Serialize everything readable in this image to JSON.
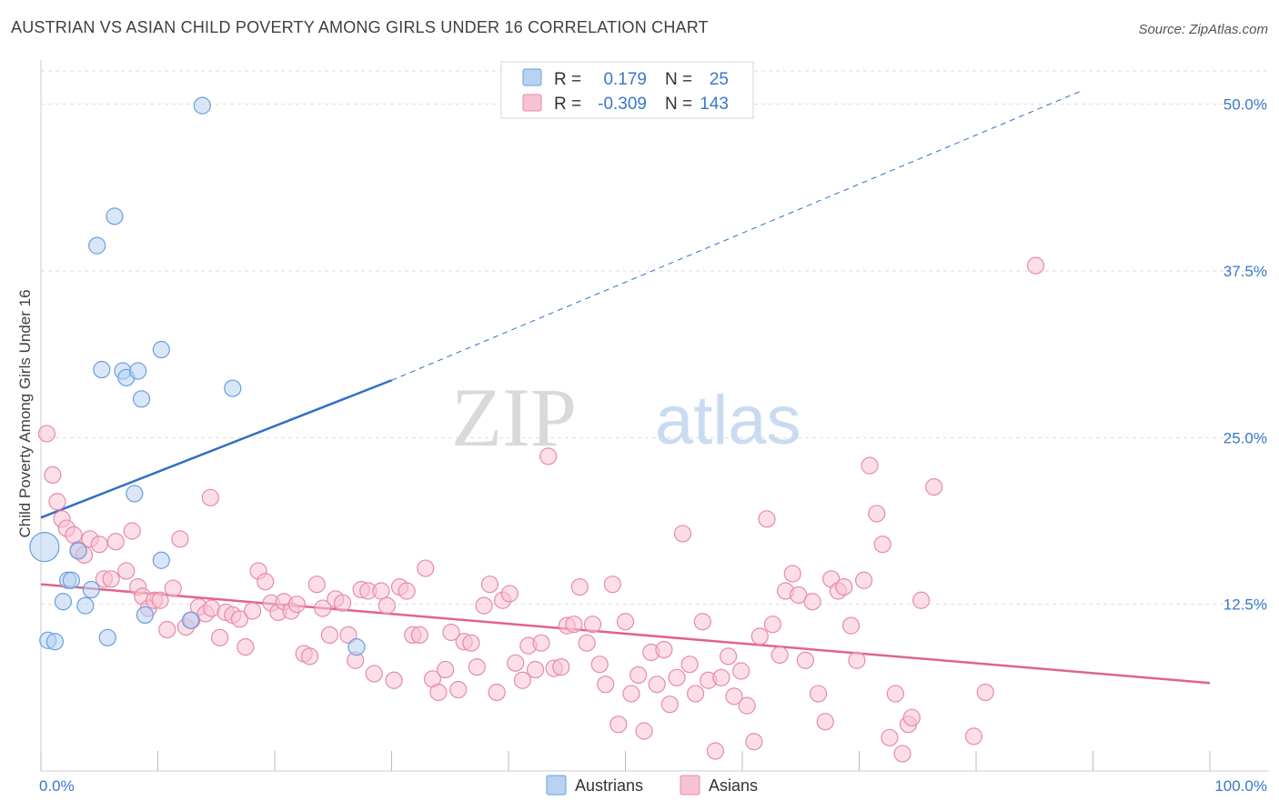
{
  "title": "AUSTRIAN VS ASIAN CHILD POVERTY AMONG GIRLS UNDER 16 CORRELATION CHART",
  "source": "Source: ZipAtlas.com",
  "watermark": {
    "zip": "ZIP",
    "atlas": "atlas"
  },
  "colors": {
    "blue_fill": "#b8d2f2",
    "blue_stroke": "#6a9fde",
    "blue_line": "#2f6fc7",
    "pink_fill": "#f7c3d4",
    "pink_stroke": "#e88aaa",
    "pink_line": "#e0638d",
    "tick_text": "#3b78c8",
    "grid": "#dddddd"
  },
  "legend_top": {
    "rows": [
      {
        "r_label": "R =",
        "r_value": "0.179",
        "n_label": "N =",
        "n_value": "25",
        "series": "Austrians"
      },
      {
        "r_label": "R =",
        "r_value": "-0.309",
        "n_label": "N =",
        "n_value": "143",
        "series": "Asians"
      }
    ]
  },
  "legend_bottom": {
    "items": [
      "Austrians",
      "Asians"
    ]
  },
  "chart_data": {
    "type": "scatter",
    "ylabel": "Child Poverty Among Girls Under 16",
    "xlim": [
      0,
      100
    ],
    "ylim": [
      0,
      52.5
    ],
    "x_tick_labels": [
      "0.0%",
      "100.0%"
    ],
    "y_ticks": [
      12.5,
      25.0,
      37.5,
      50.0
    ],
    "y_tick_labels": [
      "12.5%",
      "25.0%",
      "37.5%",
      "50.0%"
    ],
    "grid": true,
    "legend_position": "top-center",
    "series": [
      {
        "name": "Austrians",
        "color": "blue",
        "r": 0.179,
        "n": 25,
        "trend": {
          "x0": 0,
          "y0": 19.0,
          "x1": 30,
          "y1": 29.3,
          "dashed_to_x": 89,
          "dashed_to_y": 51.0
        },
        "points": [
          [
            0.3,
            16.8,
            16
          ],
          [
            0.6,
            9.8,
            9
          ],
          [
            1.2,
            9.7,
            9
          ],
          [
            1.9,
            12.7,
            9
          ],
          [
            2.3,
            14.3,
            9
          ],
          [
            2.6,
            14.3,
            9
          ],
          [
            3.2,
            16.5,
            9
          ],
          [
            3.8,
            12.4,
            9
          ],
          [
            4.3,
            13.6,
            9
          ],
          [
            4.8,
            39.4,
            9
          ],
          [
            5.2,
            30.1,
            9
          ],
          [
            5.7,
            10.0,
            9
          ],
          [
            6.3,
            41.6,
            9
          ],
          [
            7.0,
            30.0,
            9
          ],
          [
            7.3,
            29.5,
            9
          ],
          [
            8.3,
            30.0,
            9
          ],
          [
            8.6,
            27.9,
            9
          ],
          [
            8.9,
            11.7,
            9
          ],
          [
            8.0,
            20.8,
            9
          ],
          [
            10.3,
            31.6,
            9
          ],
          [
            10.3,
            15.8,
            9
          ],
          [
            12.8,
            11.3,
            9
          ],
          [
            13.8,
            49.9,
            9
          ],
          [
            16.4,
            28.7,
            9
          ],
          [
            27.0,
            9.3,
            9
          ]
        ]
      },
      {
        "name": "Asians",
        "color": "pink",
        "r": -0.309,
        "n": 143,
        "trend": {
          "x0": 0,
          "y0": 14.0,
          "x1": 100,
          "y1": 6.6
        },
        "points": [
          [
            0.5,
            25.3,
            9
          ],
          [
            1.0,
            22.2,
            9
          ],
          [
            1.4,
            20.2,
            9
          ],
          [
            1.8,
            18.9,
            9
          ],
          [
            2.2,
            18.2,
            9
          ],
          [
            2.8,
            17.7,
            9
          ],
          [
            3.2,
            16.6,
            9
          ],
          [
            3.7,
            16.2,
            9
          ],
          [
            4.2,
            17.4,
            9
          ],
          [
            5.0,
            17.0,
            9
          ],
          [
            5.4,
            14.4,
            9
          ],
          [
            6.0,
            14.4,
            9
          ],
          [
            6.4,
            17.2,
            9
          ],
          [
            7.3,
            15.0,
            9
          ],
          [
            7.8,
            18.0,
            9
          ],
          [
            8.3,
            13.8,
            9
          ],
          [
            8.7,
            13.1,
            9
          ],
          [
            9.2,
            12.2,
            9
          ],
          [
            9.7,
            12.8,
            9
          ],
          [
            10.2,
            12.8,
            9
          ],
          [
            10.8,
            10.6,
            9
          ],
          [
            11.3,
            13.7,
            9
          ],
          [
            11.9,
            17.4,
            9
          ],
          [
            12.4,
            10.8,
            9
          ],
          [
            12.9,
            11.3,
            9
          ],
          [
            13.5,
            12.3,
            9
          ],
          [
            14.1,
            11.8,
            9
          ],
          [
            14.6,
            12.2,
            9
          ],
          [
            14.5,
            20.5,
            9
          ],
          [
            15.3,
            10.0,
            9
          ],
          [
            15.8,
            11.9,
            9
          ],
          [
            16.4,
            11.7,
            9
          ],
          [
            17.0,
            11.4,
            9
          ],
          [
            17.5,
            9.3,
            9
          ],
          [
            18.1,
            12.0,
            9
          ],
          [
            18.6,
            15.0,
            9
          ],
          [
            19.2,
            14.2,
            9
          ],
          [
            19.7,
            12.6,
            9
          ],
          [
            20.3,
            11.9,
            9
          ],
          [
            20.8,
            12.7,
            9
          ],
          [
            21.4,
            12.0,
            9
          ],
          [
            21.9,
            12.5,
            9
          ],
          [
            22.5,
            8.8,
            9
          ],
          [
            23.0,
            8.6,
            9
          ],
          [
            23.6,
            14.0,
            9
          ],
          [
            24.1,
            12.2,
            9
          ],
          [
            24.7,
            10.2,
            9
          ],
          [
            25.2,
            12.9,
            9
          ],
          [
            25.8,
            12.6,
            9
          ],
          [
            26.3,
            10.2,
            9
          ],
          [
            26.9,
            8.3,
            9
          ],
          [
            27.4,
            13.6,
            9
          ],
          [
            28.0,
            13.5,
            9
          ],
          [
            28.5,
            7.3,
            9
          ],
          [
            29.1,
            13.5,
            9
          ],
          [
            29.6,
            12.4,
            9
          ],
          [
            30.2,
            6.8,
            9
          ],
          [
            30.7,
            13.8,
            9
          ],
          [
            31.3,
            13.5,
            9
          ],
          [
            31.8,
            10.2,
            9
          ],
          [
            32.4,
            10.2,
            9
          ],
          [
            32.9,
            15.2,
            9
          ],
          [
            33.5,
            6.9,
            9
          ],
          [
            34.0,
            5.9,
            9
          ],
          [
            34.6,
            7.6,
            9
          ],
          [
            35.1,
            10.4,
            9
          ],
          [
            35.7,
            6.1,
            9
          ],
          [
            36.2,
            9.7,
            9
          ],
          [
            36.8,
            9.6,
            9
          ],
          [
            37.3,
            7.8,
            9
          ],
          [
            37.9,
            12.4,
            9
          ],
          [
            38.4,
            14.0,
            9
          ],
          [
            39.0,
            5.9,
            9
          ],
          [
            39.5,
            12.8,
            9
          ],
          [
            40.1,
            13.3,
            9
          ],
          [
            40.6,
            8.1,
            9
          ],
          [
            41.2,
            6.8,
            9
          ],
          [
            41.7,
            9.4,
            9
          ],
          [
            42.3,
            7.6,
            9
          ],
          [
            42.8,
            9.6,
            9
          ],
          [
            43.4,
            23.6,
            9
          ],
          [
            43.9,
            7.7,
            9
          ],
          [
            44.5,
            7.8,
            9
          ],
          [
            45.0,
            10.9,
            9
          ],
          [
            45.6,
            11.0,
            9
          ],
          [
            46.1,
            13.8,
            9
          ],
          [
            46.7,
            9.6,
            9
          ],
          [
            47.2,
            11.0,
            9
          ],
          [
            47.8,
            8.0,
            9
          ],
          [
            48.3,
            6.5,
            9
          ],
          [
            48.9,
            14.0,
            9
          ],
          [
            49.4,
            3.5,
            9
          ],
          [
            50.0,
            11.2,
            9
          ],
          [
            50.5,
            5.8,
            9
          ],
          [
            51.1,
            7.2,
            9
          ],
          [
            51.6,
            3.0,
            9
          ],
          [
            52.2,
            8.9,
            9
          ],
          [
            52.7,
            6.5,
            9
          ],
          [
            53.3,
            9.1,
            9
          ],
          [
            53.8,
            5.0,
            9
          ],
          [
            54.4,
            7.0,
            9
          ],
          [
            54.9,
            17.8,
            9
          ],
          [
            55.5,
            8.0,
            9
          ],
          [
            56.0,
            5.8,
            9
          ],
          [
            56.6,
            11.2,
            9
          ],
          [
            57.1,
            6.8,
            9
          ],
          [
            57.7,
            1.5,
            9
          ],
          [
            58.2,
            7.0,
            9
          ],
          [
            58.8,
            8.6,
            9
          ],
          [
            59.3,
            5.6,
            9
          ],
          [
            59.9,
            7.5,
            9
          ],
          [
            60.4,
            4.9,
            9
          ],
          [
            61.0,
            2.2,
            9
          ],
          [
            61.5,
            10.1,
            9
          ],
          [
            62.1,
            18.9,
            9
          ],
          [
            62.6,
            11.0,
            9
          ],
          [
            63.2,
            8.7,
            9
          ],
          [
            63.7,
            13.5,
            9
          ],
          [
            64.3,
            14.8,
            9
          ],
          [
            64.8,
            13.2,
            9
          ],
          [
            65.4,
            8.3,
            9
          ],
          [
            66.0,
            12.7,
            9
          ],
          [
            66.5,
            5.8,
            9
          ],
          [
            67.1,
            3.7,
            9
          ],
          [
            67.6,
            14.4,
            9
          ],
          [
            68.2,
            13.5,
            9
          ],
          [
            68.7,
            13.8,
            9
          ],
          [
            69.3,
            10.9,
            9
          ],
          [
            69.8,
            8.3,
            9
          ],
          [
            70.4,
            14.3,
            9
          ],
          [
            70.9,
            22.9,
            9
          ],
          [
            71.5,
            19.3,
            9
          ],
          [
            72.0,
            17.0,
            9
          ],
          [
            72.6,
            2.5,
            9
          ],
          [
            73.1,
            5.8,
            9
          ],
          [
            73.7,
            1.3,
            9
          ],
          [
            74.2,
            3.5,
            9
          ],
          [
            74.5,
            4.0,
            9
          ],
          [
            75.3,
            12.8,
            9
          ],
          [
            76.4,
            21.3,
            9
          ],
          [
            79.8,
            2.6,
            9
          ],
          [
            80.8,
            5.9,
            9
          ],
          [
            85.1,
            37.9,
            9
          ]
        ]
      }
    ]
  }
}
